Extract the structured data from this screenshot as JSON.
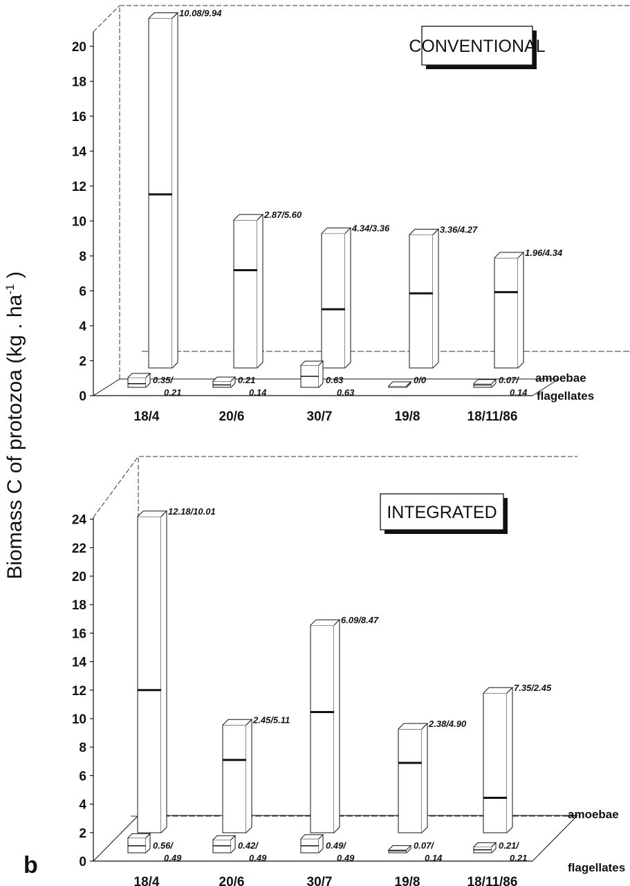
{
  "figure": {
    "y_axis_label_main": "Biomass C of protozoa (kg . ha",
    "y_axis_label_sup": "-1",
    "y_axis_label_close": " )",
    "panel_letter": "b"
  },
  "chart_data": [
    {
      "type": "bar",
      "title": "CONVENTIONAL",
      "categories": [
        "18/4",
        "20/6",
        "30/7",
        "19/8",
        "18/11/86"
      ],
      "row_labels": [
        "amoebae",
        "flagellates"
      ],
      "ylim": [
        0,
        20
      ],
      "yticks": [
        0,
        2,
        4,
        6,
        8,
        10,
        12,
        14,
        16,
        18,
        20
      ],
      "series": [
        {
          "name": "amoebae",
          "pairs": [
            [
              10.08,
              9.94
            ],
            [
              2.87,
              5.6
            ],
            [
              4.34,
              3.36
            ],
            [
              3.36,
              4.27
            ],
            [
              1.96,
              4.34
            ]
          ],
          "labels": [
            "10.08/9.94",
            "2.87/5.60",
            "4.34/3.36",
            "3.36/4.27",
            "1.96/4.34"
          ]
        },
        {
          "name": "flagellates",
          "pairs": [
            [
              0.35,
              0.21
            ],
            [
              0.21,
              0.14
            ],
            [
              0.63,
              0.63
            ],
            [
              0,
              0
            ],
            [
              0.07,
              0.14
            ]
          ],
          "labels_top": [
            "0.35/",
            "0.21",
            "0.63",
            "0/0",
            "0.07/"
          ],
          "labels_bottom": [
            "0.21",
            "0.14",
            "0.63",
            "",
            "0.14"
          ]
        }
      ]
    },
    {
      "type": "bar",
      "title": "INTEGRATED",
      "categories": [
        "18/4",
        "20/6",
        "30/7",
        "19/8",
        "18/11/86"
      ],
      "row_labels": [
        "amoebae",
        "flagellates"
      ],
      "ylim": [
        0,
        24
      ],
      "yticks": [
        0,
        2,
        4,
        6,
        8,
        10,
        12,
        14,
        16,
        18,
        20,
        22,
        24
      ],
      "series": [
        {
          "name": "amoebae",
          "pairs": [
            [
              12.18,
              10.01
            ],
            [
              2.45,
              5.11
            ],
            [
              6.09,
              8.47
            ],
            [
              2.38,
              4.9
            ],
            [
              7.35,
              2.45
            ]
          ],
          "labels": [
            "12.18/10.01",
            "2.45/5.11",
            "6.09/8.47",
            "2.38/4.90",
            "7.35/2.45"
          ]
        },
        {
          "name": "flagellates",
          "pairs": [
            [
              0.56,
              0.49
            ],
            [
              0.42,
              0.49
            ],
            [
              0.49,
              0.49
            ],
            [
              0.07,
              0.14
            ],
            [
              0.21,
              0.21
            ]
          ],
          "labels_top": [
            "0.56/",
            "0.42/",
            "0.49/",
            "0.07/",
            "0.21/"
          ],
          "labels_bottom": [
            "0.49",
            "0.49",
            "0.49",
            "0.14",
            "0.21"
          ]
        }
      ]
    }
  ]
}
